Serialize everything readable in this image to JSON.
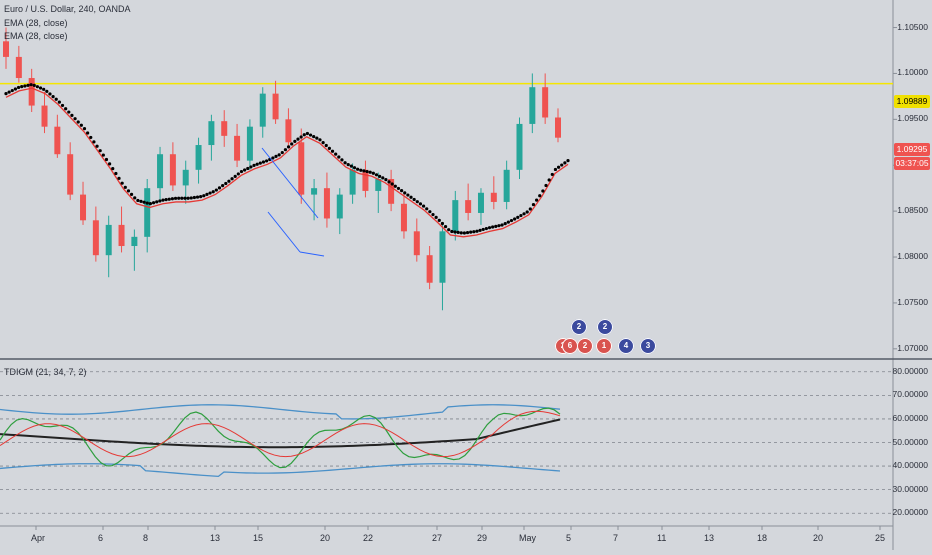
{
  "symbol_title": "Euro / U.S. Dollar, 240, OANDA",
  "indicators": [
    "EMA (28, close)",
    "EMA (28, close)"
  ],
  "oscillator_title": "TDIGM (21, 34, 7, 2)",
  "badges": {
    "resistance": {
      "label": "1.09889",
      "color": "#f0e000",
      "text_color": "#000000"
    },
    "last_price": {
      "label": "1.09295",
      "color": "#ef5350"
    },
    "countdown": {
      "label": "03:37:05",
      "color": "#ef5350"
    }
  },
  "price_axis": {
    "labels": [
      "1.10500",
      "1.10000",
      "1.09500",
      "1.09000",
      "1.08500",
      "1.08000",
      "1.07500",
      "1.07000"
    ],
    "values": [
      1.105,
      1.1,
      1.095,
      1.09,
      1.085,
      1.08,
      1.075,
      1.07
    ]
  },
  "osc_axis": {
    "labels": [
      "80.00000",
      "70.00000",
      "60.00000",
      "50.00000",
      "40.00000",
      "30.00000",
      "20.00000"
    ],
    "values": [
      80,
      70,
      60,
      50,
      40,
      30,
      20
    ]
  },
  "time_axis": {
    "labels": [
      "Apr",
      "6",
      "8",
      "13",
      "15",
      "20",
      "22",
      "27",
      "29",
      "May",
      "5",
      "7",
      "11",
      "13",
      "18",
      "20",
      "25"
    ]
  },
  "events": [
    {
      "text": "2",
      "color": "#3b4a9e"
    },
    {
      "text": "2",
      "color": "#3b4a9e"
    },
    {
      "text": "2",
      "color": "#d9534f"
    },
    {
      "text": "2",
      "color": "#d9534f"
    },
    {
      "text": "1",
      "color": "#d9534f"
    },
    {
      "text": "4",
      "color": "#3b4a9e"
    },
    {
      "text": "3",
      "color": "#3b4a9e"
    },
    {
      "text": "6",
      "color": "#d9534f"
    }
  ],
  "colors": {
    "background": "#d4d7dc",
    "bull": "#26a69a",
    "bear": "#ef5350",
    "resistance_line": "#f5e600",
    "ema_red": "#e53935",
    "ema_dots": "#000000",
    "trend_lines": "#2962ff",
    "band_blue": "#4a90c8",
    "osc_green": "#2e9e3e",
    "osc_red": "#e53935",
    "osc_black": "#222222"
  },
  "chart_data": {
    "type": "candlestick",
    "title": "Euro / U.S. Dollar, 240, OANDA",
    "ylim": [
      1.069,
      1.108
    ],
    "resistance_level": 1.09889,
    "last_price": 1.09295,
    "ema28": [
      1.0978,
      1.0985,
      1.0988,
      1.0982,
      1.097,
      1.0955,
      1.094,
      1.092,
      1.09,
      1.0878,
      1.0862,
      1.0858,
      1.0862,
      1.0864,
      1.0864,
      1.0866,
      1.0872,
      1.0882,
      1.0893,
      1.09,
      1.0905,
      1.0912,
      1.0925,
      1.0935,
      1.0928,
      1.0915,
      1.0902,
      1.0895,
      1.0892,
      1.0885,
      1.0875,
      1.0865,
      1.0855,
      1.0842,
      1.0828,
      1.0826,
      1.0828,
      1.0832,
      1.0835,
      1.0842,
      1.085,
      1.087,
      1.0895,
      1.0905
    ],
    "candles": [
      [
        1.1035,
        1.105,
        1.1005,
        1.1018
      ],
      [
        1.1018,
        1.103,
        1.099,
        1.0995
      ],
      [
        1.0995,
        1.1005,
        1.0958,
        1.0965
      ],
      [
        1.0965,
        1.098,
        1.0935,
        1.0942
      ],
      [
        1.0942,
        1.0955,
        1.0908,
        1.0912
      ],
      [
        1.0912,
        1.0925,
        1.0862,
        1.0868
      ],
      [
        1.0868,
        1.0882,
        1.0835,
        1.084
      ],
      [
        1.084,
        1.0855,
        1.0795,
        1.0802
      ],
      [
        1.0802,
        1.0845,
        1.0778,
        1.0835
      ],
      [
        1.0835,
        1.0855,
        1.0805,
        1.0812
      ],
      [
        1.0812,
        1.083,
        1.0785,
        1.0822
      ],
      [
        1.0822,
        1.0885,
        1.0805,
        1.0875
      ],
      [
        1.0875,
        1.092,
        1.0862,
        1.0912
      ],
      [
        1.0912,
        1.0925,
        1.0872,
        1.0878
      ],
      [
        1.0878,
        1.0905,
        1.0858,
        1.0895
      ],
      [
        1.0895,
        1.093,
        1.088,
        1.0922
      ],
      [
        1.0922,
        1.0955,
        1.0905,
        1.0948
      ],
      [
        1.0948,
        1.096,
        1.092,
        1.0932
      ],
      [
        1.0932,
        1.0945,
        1.0898,
        1.0905
      ],
      [
        1.0905,
        1.095,
        1.0895,
        1.0942
      ],
      [
        1.0942,
        1.0985,
        1.093,
        1.0978
      ],
      [
        1.0978,
        1.0992,
        1.0945,
        1.095
      ],
      [
        1.095,
        1.0962,
        1.0918,
        1.0925
      ],
      [
        1.0925,
        1.094,
        1.0858,
        1.0868
      ],
      [
        1.0868,
        1.0885,
        1.084,
        1.0875
      ],
      [
        1.0875,
        1.0892,
        1.0832,
        1.0842
      ],
      [
        1.0842,
        1.0875,
        1.0825,
        1.0868
      ],
      [
        1.0868,
        1.0902,
        1.0858,
        1.0895
      ],
      [
        1.0895,
        1.0905,
        1.0865,
        1.0872
      ],
      [
        1.0872,
        1.0892,
        1.0848,
        1.0885
      ],
      [
        1.0885,
        1.0895,
        1.085,
        1.0858
      ],
      [
        1.0858,
        1.087,
        1.082,
        1.0828
      ],
      [
        1.0828,
        1.0842,
        1.0795,
        1.0802
      ],
      [
        1.0802,
        1.0812,
        1.0765,
        1.0772
      ],
      [
        1.0772,
        1.0835,
        1.0742,
        1.0828
      ],
      [
        1.0828,
        1.0872,
        1.0818,
        1.0862
      ],
      [
        1.0862,
        1.088,
        1.084,
        1.0848
      ],
      [
        1.0848,
        1.0875,
        1.0835,
        1.087
      ],
      [
        1.087,
        1.0888,
        1.0852,
        1.086
      ],
      [
        1.086,
        1.0905,
        1.0852,
        1.0895
      ],
      [
        1.0895,
        1.0952,
        1.0885,
        1.0945
      ],
      [
        1.0945,
        1.1,
        1.0935,
        1.0985
      ],
      [
        1.0985,
        1.1,
        1.0945,
        1.0952
      ],
      [
        1.0952,
        1.0962,
        1.0925,
        1.093
      ]
    ]
  }
}
